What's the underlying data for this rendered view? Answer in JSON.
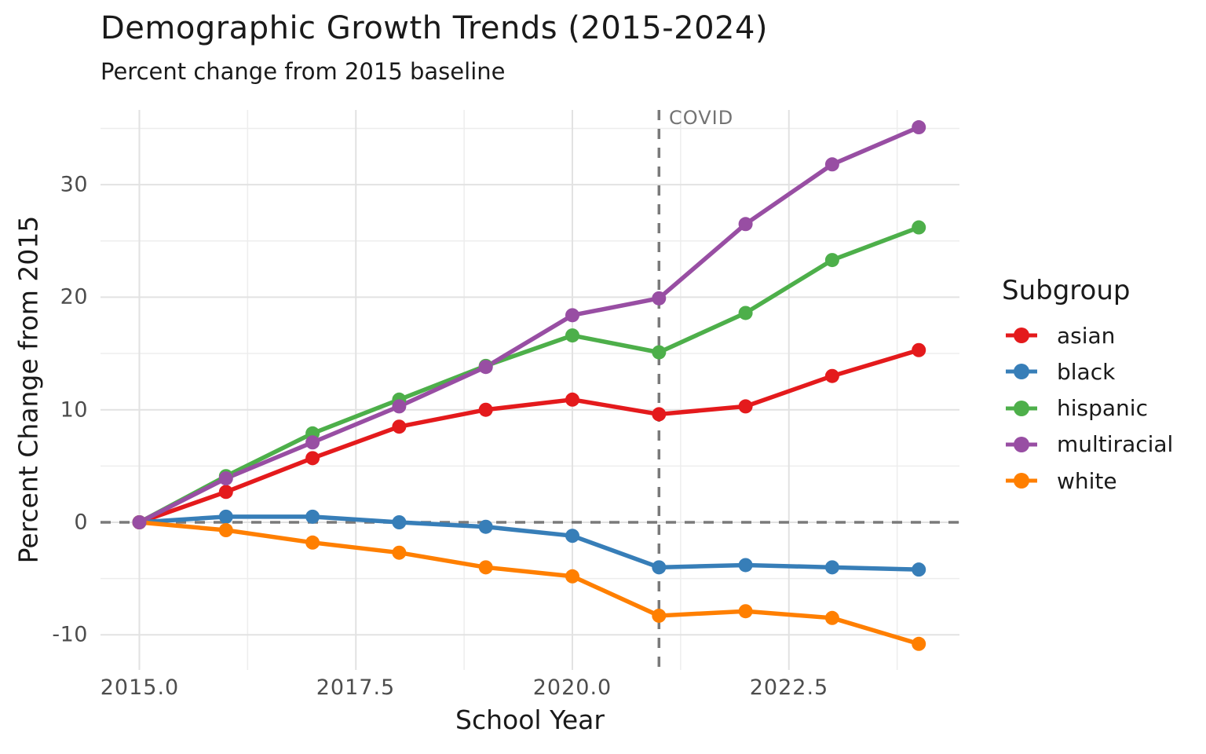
{
  "title": "Demographic Growth Trends (2015-2024)",
  "subtitle": "Percent change from 2015 baseline",
  "x_axis": {
    "label": "School Year",
    "ticks": [
      {
        "value": 2015.0,
        "label": "2015.0"
      },
      {
        "value": 2017.5,
        "label": "2017.5"
      },
      {
        "value": 2020.0,
        "label": "2020.0"
      },
      {
        "value": 2022.5,
        "label": "2022.5"
      }
    ]
  },
  "y_axis": {
    "label": "Percent Change from 2015",
    "ticks": [
      {
        "value": 30,
        "label": "30"
      },
      {
        "value": 20,
        "label": "20"
      },
      {
        "value": 10,
        "label": "10"
      },
      {
        "value": 0,
        "label": "0"
      },
      {
        "value": -10,
        "label": "-10"
      }
    ]
  },
  "annotation": {
    "label": "COVID",
    "x": 2021
  },
  "reference_lines": {
    "horizontal_y": 0,
    "vertical_x": 2021,
    "color": "#7a7a7a"
  },
  "legend": {
    "title": "Subgroup",
    "items": [
      {
        "label": "asian",
        "color": "#E41A1C"
      },
      {
        "label": "black",
        "color": "#377EB8"
      },
      {
        "label": "hispanic",
        "color": "#4DAF4A"
      },
      {
        "label": "multiracial",
        "color": "#984EA3"
      },
      {
        "label": "white",
        "color": "#FF7F00"
      }
    ]
  },
  "style_colors": {
    "grid_major": "#e2e2e2",
    "grid_minor": "#ededed",
    "axis_text": "#4d4d4d",
    "annotation_text": "#737373"
  },
  "chart_data": {
    "type": "line",
    "title": "Demographic Growth Trends (2015-2024)",
    "subtitle": "Percent change from 2015 baseline",
    "xlabel": "School Year",
    "ylabel": "Percent Change from 2015",
    "x": [
      2015,
      2016,
      2017,
      2018,
      2019,
      2020,
      2021,
      2022,
      2023,
      2024
    ],
    "series": [
      {
        "name": "asian",
        "color": "#E41A1C",
        "values": [
          0,
          2.7,
          5.7,
          8.5,
          10.0,
          10.9,
          9.6,
          10.3,
          13.0,
          15.3
        ]
      },
      {
        "name": "black",
        "color": "#377EB8",
        "values": [
          0,
          0.5,
          0.5,
          0.0,
          -0.4,
          -1.2,
          -4.0,
          -3.8,
          -4.0,
          -4.2
        ]
      },
      {
        "name": "hispanic",
        "color": "#4DAF4A",
        "values": [
          0,
          4.1,
          7.9,
          10.9,
          13.9,
          16.6,
          15.1,
          18.6,
          23.3,
          26.2
        ]
      },
      {
        "name": "multiracial",
        "color": "#984EA3",
        "values": [
          0,
          3.9,
          7.1,
          10.3,
          13.8,
          18.4,
          19.9,
          26.5,
          31.8,
          35.1
        ]
      },
      {
        "name": "white",
        "color": "#FF7F00",
        "values": [
          0,
          -0.7,
          -1.8,
          -2.7,
          -4.0,
          -4.8,
          -8.3,
          -7.9,
          -8.5,
          -10.8
        ]
      }
    ],
    "xlim": [
      2014.55,
      2024.45
    ],
    "ylim": [
      -13.1,
      36.6
    ],
    "grid": true,
    "x_major_breaks": [
      2015.0,
      2017.5,
      2020.0,
      2022.5
    ],
    "x_minor_breaks": [
      2016.25,
      2018.75,
      2021.25,
      2023.75
    ],
    "y_major_breaks": [
      -10,
      0,
      10,
      20,
      30
    ],
    "y_minor_breaks": [
      -5,
      5,
      15,
      25,
      35
    ],
    "legend_position": "right",
    "legend_title": "Subgroup"
  }
}
